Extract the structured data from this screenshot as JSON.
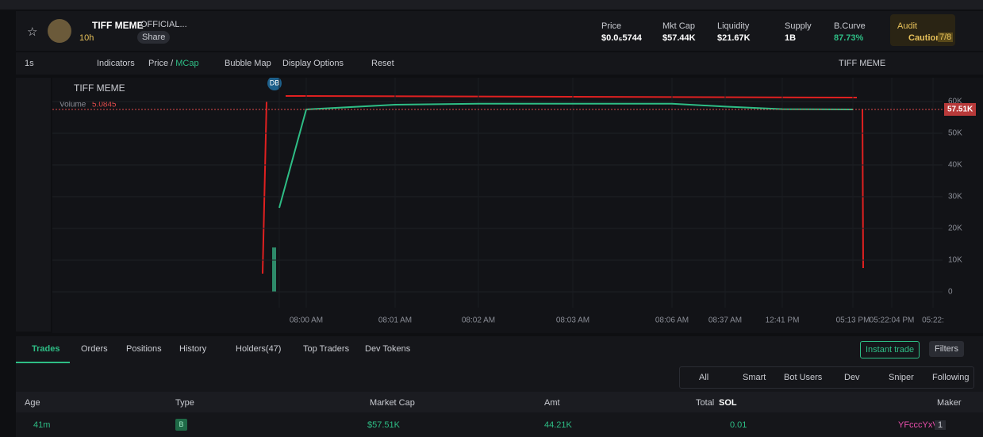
{
  "header": {
    "token_name": "TIFF MEME",
    "token_subtitle": "OFFICIAL...",
    "age": "10h",
    "share": "Share",
    "stats": [
      {
        "label": "Price",
        "value": "$0.0₅5744"
      },
      {
        "label": "Mkt Cap",
        "value": "$57.44K"
      },
      {
        "label": "Liquidity",
        "value": "$21.67K"
      },
      {
        "label": "Supply",
        "value": "1B"
      },
      {
        "label": "B.Curve",
        "value": "87.73%"
      }
    ],
    "audit": {
      "label": "Audit",
      "status": "Caution",
      "score": "7/8"
    }
  },
  "toolbar": {
    "interval": "1s",
    "indicators": "Indicators",
    "price": "Price",
    "mcap": "MCap",
    "bubble_map": "Bubble Map",
    "display_options": "Display Options",
    "reset": "Reset",
    "symbol": "TIFF MEME"
  },
  "chart_data": {
    "type": "line",
    "title": "TIFF MEME",
    "volume_label": "Volume",
    "volume_value": 5.0845,
    "marker": "DB",
    "categories": [
      null,
      "08:00 AM",
      "08:01 AM",
      "08:02 AM",
      "08:03 AM",
      "08:06 AM",
      "08:37 AM",
      "12:41 PM",
      "05:13 PM",
      "05:22:04 PM",
      "05:22:"
    ],
    "series": [
      {
        "name": "TIFF MEME",
        "color": "#2ebd85",
        "values": [
          26500,
          57500,
          59000,
          59300,
          59300,
          59300,
          58400,
          57600,
          57510,
          null,
          null
        ]
      }
    ],
    "ylim": [
      0,
      67000
    ],
    "yticks": [
      {
        "value": 0,
        "label": "0"
      },
      {
        "value": 10000,
        "label": "10K"
      },
      {
        "value": 20000,
        "label": "20K"
      },
      {
        "value": 30000,
        "label": "30K"
      },
      {
        "value": 40000,
        "label": "40K"
      },
      {
        "value": 50000,
        "label": "50K"
      },
      {
        "value": 60000,
        "label": "60K"
      }
    ],
    "last_price": {
      "value": 57510,
      "label": "57.51K"
    },
    "grid": true
  },
  "tabs": [
    "Trades",
    "Orders",
    "Positions",
    "History",
    "Holders(47)",
    "Top Traders",
    "Dev Tokens"
  ],
  "buttons": {
    "instant_trade": "Instant trade",
    "filters": "Filters"
  },
  "filters": [
    "All",
    "Smart",
    "Bot Users",
    "Dev",
    "Sniper",
    "Following"
  ],
  "table": {
    "columns": [
      "Age",
      "Type",
      "Market Cap",
      "Amt",
      "Total",
      "SOL",
      "Maker"
    ],
    "rows": [
      [
        "41m",
        "B",
        "$57.51K",
        "44.21K",
        "0.01",
        "YFcccYxV",
        "1"
      ]
    ]
  }
}
